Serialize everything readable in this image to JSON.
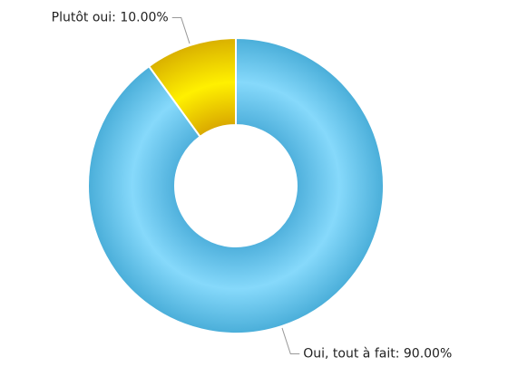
{
  "chart_data": {
    "type": "donut",
    "values": [
      90,
      10
    ],
    "value_labels": [
      "Oui, tout à fait: 90.00%",
      "Plutôt oui: 10.00%"
    ],
    "colors": [
      "#5cc3ee",
      "#f2d400"
    ]
  }
}
